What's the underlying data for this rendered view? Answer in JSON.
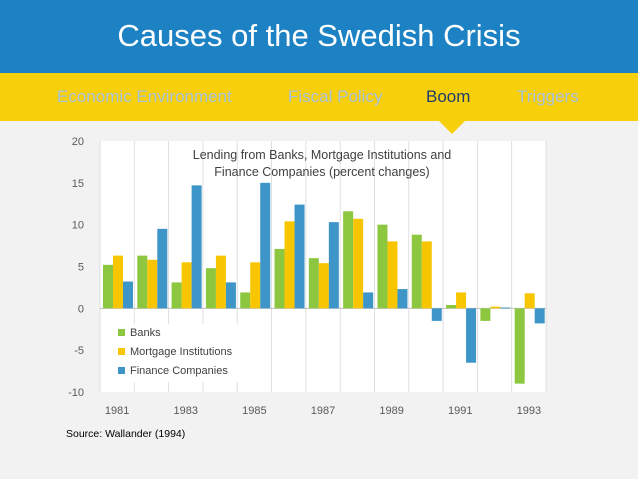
{
  "slide": {
    "title": "Causes of the Swedish Crisis",
    "source": "Source: Wallander (1994)"
  },
  "nav": {
    "items": [
      {
        "label": "Economic Environment",
        "active": false
      },
      {
        "label": "Fiscal Policy",
        "active": false
      },
      {
        "label": "Boom",
        "active": true
      },
      {
        "label": "Triggers",
        "active": false
      }
    ]
  },
  "colors": {
    "title_bg": "#1d82c4",
    "nav_bg": "#f7cf0a",
    "nav_inactive": "#a7c2dc",
    "nav_active": "#1f3d6e",
    "banks": "#8dc63f",
    "mortgage": "#f7c600",
    "finance": "#3d95c8"
  },
  "chart_data": {
    "type": "bar",
    "title": "Lending from Banks, Mortgage Institutions and Finance Companies (percent changes)",
    "title_lines": [
      "Lending from Banks, Mortgage Institutions and",
      "Finance Companies (percent changes)"
    ],
    "xlabel": "",
    "ylabel": "",
    "ylim": [
      -10,
      20
    ],
    "yticks": [
      -10,
      -5,
      0,
      5,
      10,
      15,
      20
    ],
    "categories": [
      "1981",
      "1982",
      "1983",
      "1984",
      "1985",
      "1986",
      "1987",
      "1988",
      "1989",
      "1990",
      "1991",
      "1992",
      "1993"
    ],
    "tick_labels": [
      "1981",
      "1983",
      "1985",
      "1987",
      "1989",
      "1991",
      "1993"
    ],
    "grid": "vertical",
    "legend_position": "bottom-left",
    "series": [
      {
        "name": "Banks",
        "color": "#8dc63f",
        "values": [
          5.2,
          6.3,
          3.1,
          4.8,
          1.9,
          7.1,
          6.0,
          11.6,
          10.0,
          8.8,
          0.4,
          -1.5,
          -9.0
        ]
      },
      {
        "name": "Mortgage Institutions",
        "color": "#f7c600",
        "values": [
          6.3,
          5.8,
          5.5,
          6.3,
          5.5,
          10.4,
          5.4,
          10.7,
          8.0,
          8.0,
          1.9,
          0.2,
          1.8
        ]
      },
      {
        "name": "Finance Companies",
        "color": "#3d95c8",
        "values": [
          3.2,
          9.5,
          14.7,
          3.1,
          15.0,
          12.4,
          10.3,
          1.9,
          2.3,
          -1.5,
          -6.5,
          0.1,
          -1.8
        ]
      }
    ]
  }
}
